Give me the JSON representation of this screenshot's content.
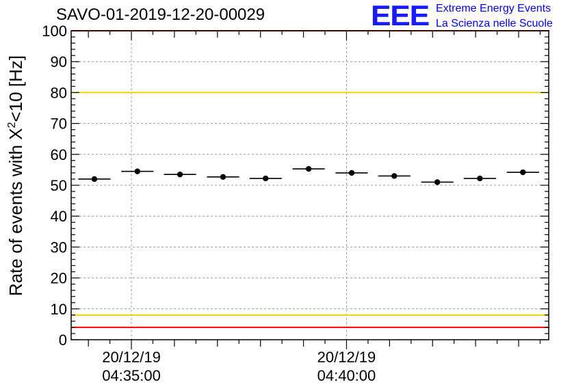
{
  "header": {
    "run_title": "SAVO-01-2019-12-20-00029",
    "logo_text": "EEE",
    "logo_line1": "Extreme Energy Events",
    "logo_line2": "La Scienza nelle Scuole"
  },
  "colors": {
    "threshold_red": "#ff0000",
    "threshold_yellow": "#ffcc00",
    "marker": "#000000",
    "grid": "#9a9a9a",
    "logo_blue": "#0000ee"
  },
  "chart_data": {
    "type": "scatter",
    "title": "SAVO-01-2019-12-20-00029",
    "xlabel": "",
    "ylabel": "Rate of events with X²<10 [Hz]",
    "ylim": [
      0,
      100
    ],
    "yticks": [
      0,
      10,
      20,
      30,
      40,
      50,
      60,
      70,
      80,
      90,
      100
    ],
    "xlim_minutes": [
      -1.4,
      9.7
    ],
    "xticks": [
      {
        "minute": 0,
        "date": "20/12/19",
        "time": "04:35:00"
      },
      {
        "minute": 5,
        "date": "20/12/19",
        "time": "04:40:00"
      }
    ],
    "grid": true,
    "series": [
      {
        "name": "rate",
        "bin_width_minutes": 0.75,
        "x_minutes": [
          -0.86,
          0.14,
          1.13,
          2.13,
          3.12,
          4.12,
          5.12,
          6.11,
          7.11,
          8.1,
          9.1
        ],
        "values": [
          52.0,
          54.5,
          53.5,
          52.7,
          52.2,
          55.3,
          54.0,
          53.0,
          51.0,
          52.2,
          54.2
        ]
      }
    ],
    "thresholds": [
      {
        "value": 100,
        "color": "red"
      },
      {
        "value": 80,
        "color": "yellow"
      },
      {
        "value": 8,
        "color": "yellow"
      },
      {
        "value": 4,
        "color": "red"
      }
    ]
  }
}
